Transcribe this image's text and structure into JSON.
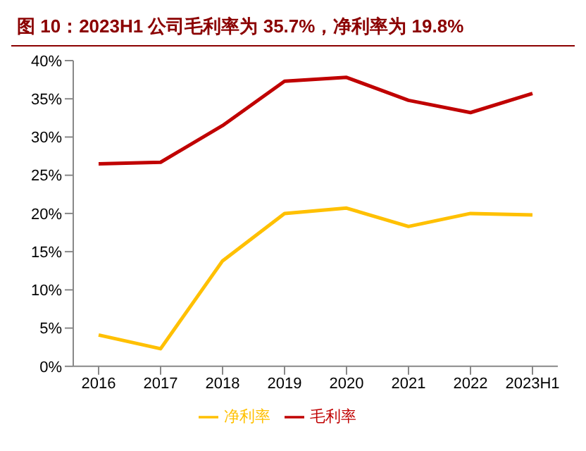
{
  "chart_data": {
    "type": "line",
    "title": "图 10：2023H1 公司毛利率为 35.7%，净利率为 19.8%",
    "categories": [
      "2016",
      "2017",
      "2018",
      "2019",
      "2020",
      "2021",
      "2022",
      "2023H1"
    ],
    "series": [
      {
        "name": "毛利率",
        "color": "#c00000",
        "values": [
          26.5,
          26.7,
          31.5,
          37.3,
          37.8,
          34.8,
          33.2,
          35.7
        ]
      },
      {
        "name": "净利率",
        "color": "#ffc000",
        "values": [
          4.1,
          2.3,
          13.8,
          20.0,
          20.7,
          18.3,
          20.0,
          19.8
        ]
      }
    ],
    "ylim": [
      0,
      40
    ],
    "yticks": [
      {
        "value": 0,
        "label": "0%"
      },
      {
        "value": 5,
        "label": "5%"
      },
      {
        "value": 10,
        "label": "10%"
      },
      {
        "value": 15,
        "label": "15%"
      },
      {
        "value": 20,
        "label": "20%"
      },
      {
        "value": 25,
        "label": "25%"
      },
      {
        "value": 30,
        "label": "30%"
      },
      {
        "value": 35,
        "label": "35%"
      },
      {
        "value": 40,
        "label": "40%"
      }
    ],
    "legend": "bottom",
    "marker": "none",
    "line_style": "solid",
    "grid": false
  }
}
